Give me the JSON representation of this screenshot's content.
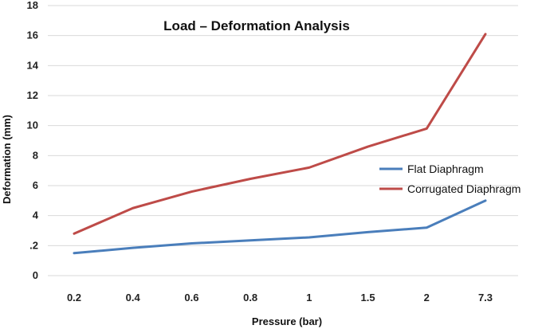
{
  "chart_data": {
    "type": "line",
    "title": "Load – Deformation Analysis",
    "xlabel": "Pressure (bar)",
    "ylabel": "Deformation (mm)",
    "categories": [
      "0.2",
      "0.4",
      "0.6",
      "0.8",
      "1",
      "1.5",
      "2",
      "7.3"
    ],
    "ylim": [
      0,
      18
    ],
    "yticks": [
      "0",
      ".2",
      "4",
      "6",
      "8",
      "10",
      "12",
      "14",
      "16",
      "18"
    ],
    "grid": true,
    "legend_position": "right",
    "series": [
      {
        "name": "Flat Diaphragm",
        "color": "#4a7ebb",
        "values": [
          1.5,
          1.85,
          2.15,
          2.35,
          2.55,
          2.9,
          3.2,
          5.0
        ]
      },
      {
        "name": "Corrugated Diaphragm",
        "color": "#be4b48",
        "values": [
          2.8,
          4.5,
          5.6,
          6.45,
          7.2,
          8.6,
          9.8,
          16.1
        ]
      }
    ]
  }
}
